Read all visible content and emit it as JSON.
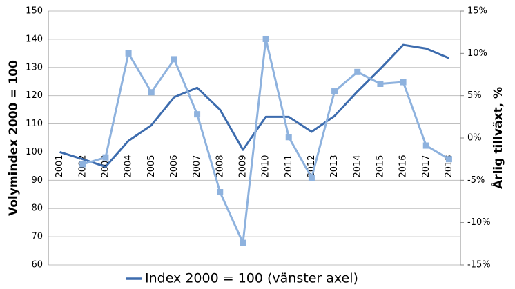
{
  "chart_data": {
    "type": "line",
    "categories": [
      "2001",
      "2002",
      "2003",
      "2004",
      "2005",
      "2006",
      "2007",
      "2008",
      "2009",
      "2010",
      "2011",
      "2012",
      "2013",
      "2014",
      "2015",
      "2016",
      "2017",
      "2018"
    ],
    "series": [
      {
        "name": "Index 2000 = 100 (vänster axel)",
        "color": "#3d6cae",
        "values": [
          100,
          97.5,
          94.8,
          104,
          109.5,
          119.5,
          122.8,
          115,
          100.8,
          112.5,
          112.5,
          107.2,
          112.8,
          121.5,
          129.5,
          138,
          136.7,
          133.3
        ]
      },
      {
        "color": "#8eb2de",
        "axis": "y2",
        "values": [
          null,
          -3.1,
          -2.3,
          10,
          5.4,
          9.3,
          2.8,
          -6.4,
          -12.4,
          11.7,
          0.1,
          -4.7,
          5.5,
          7.8,
          6.4,
          6.6,
          -0.9,
          -2.5
        ]
      }
    ],
    "ylabel": "Volymindex 2000 = 100",
    "y2label": "Årlig tillväxt, %",
    "ylim": [
      60,
      150
    ],
    "yticks": [
      60,
      70,
      80,
      90,
      100,
      110,
      120,
      130,
      140,
      150
    ],
    "y2lim": [
      -15,
      15
    ],
    "y2ticks": [
      {
        "value": -15,
        "label": "-15%"
      },
      {
        "value": -10,
        "label": "-10%"
      },
      {
        "value": -5,
        "label": "-5%"
      },
      {
        "value": 0,
        "label": "0%"
      },
      {
        "value": 5,
        "label": "5%"
      },
      {
        "value": 10,
        "label": "10%"
      },
      {
        "value": 15,
        "label": "15%"
      }
    ],
    "grid": true
  }
}
